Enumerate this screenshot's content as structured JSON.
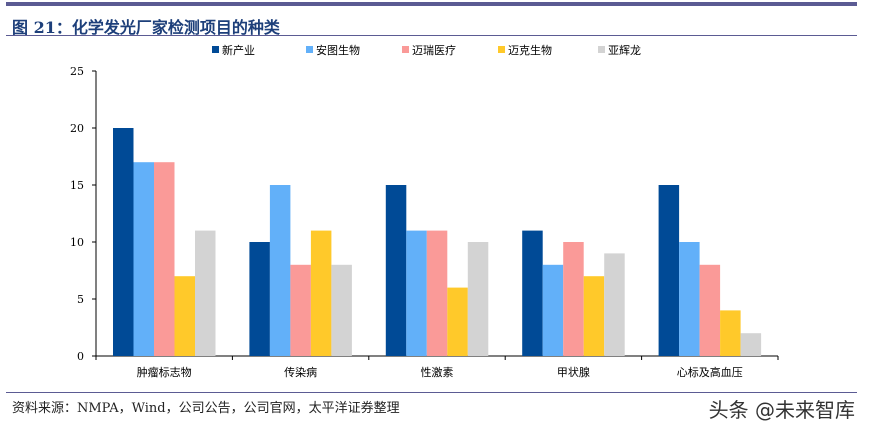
{
  "title": "图 21：化学发光厂家检测项目的种类",
  "source": "资料来源：NMPA，Wind，公司公告，公司官网，太平洋证券整理",
  "watermark": "头条 @未来智库",
  "chart_data": {
    "type": "bar",
    "title": "图 21：化学发光厂家检测项目的种类",
    "xlabel": "",
    "ylabel": "",
    "ylim": [
      0,
      25
    ],
    "yticks": [
      0,
      5,
      10,
      15,
      20,
      25
    ],
    "categories": [
      "肿瘤标志物",
      "传染病",
      "性激素",
      "甲状腺",
      "心标及高血压"
    ],
    "legend_position": "top",
    "grid": false,
    "series": [
      {
        "name": "新产业",
        "color": "#004a96",
        "values": [
          20,
          10,
          15,
          11,
          15
        ]
      },
      {
        "name": "安图生物",
        "color": "#62b0f9",
        "values": [
          17,
          15,
          11,
          8,
          10
        ]
      },
      {
        "name": "迈瑞医疗",
        "color": "#fa9a98",
        "values": [
          17,
          8,
          11,
          10,
          8
        ]
      },
      {
        "name": "迈克生物",
        "color": "#ffc92a",
        "values": [
          7,
          11,
          6,
          7,
          4
        ]
      },
      {
        "name": "亚辉龙",
        "color": "#d3d3d3",
        "values": [
          11,
          8,
          10,
          9,
          2
        ]
      }
    ]
  }
}
